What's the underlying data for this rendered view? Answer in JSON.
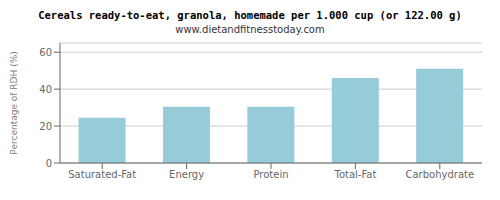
{
  "chart_data": {
    "type": "bar",
    "title": "Cereals ready-to-eat, granola, homemade per 1.000 cup (or 122.00 g)",
    "subtitle": "www.dietandfitnesstoday.com",
    "categories": [
      "Saturated-Fat",
      "Energy",
      "Protein",
      "Total-Fat",
      "Carbohydrate"
    ],
    "values": [
      24.5,
      30.5,
      30.5,
      46.0,
      51.0
    ],
    "color": "#96ccd8",
    "ylabel": "Percentage of RDH (%)",
    "ylim": [
      0,
      65
    ],
    "yticks": [
      0,
      20,
      40,
      60
    ],
    "grid": true
  }
}
